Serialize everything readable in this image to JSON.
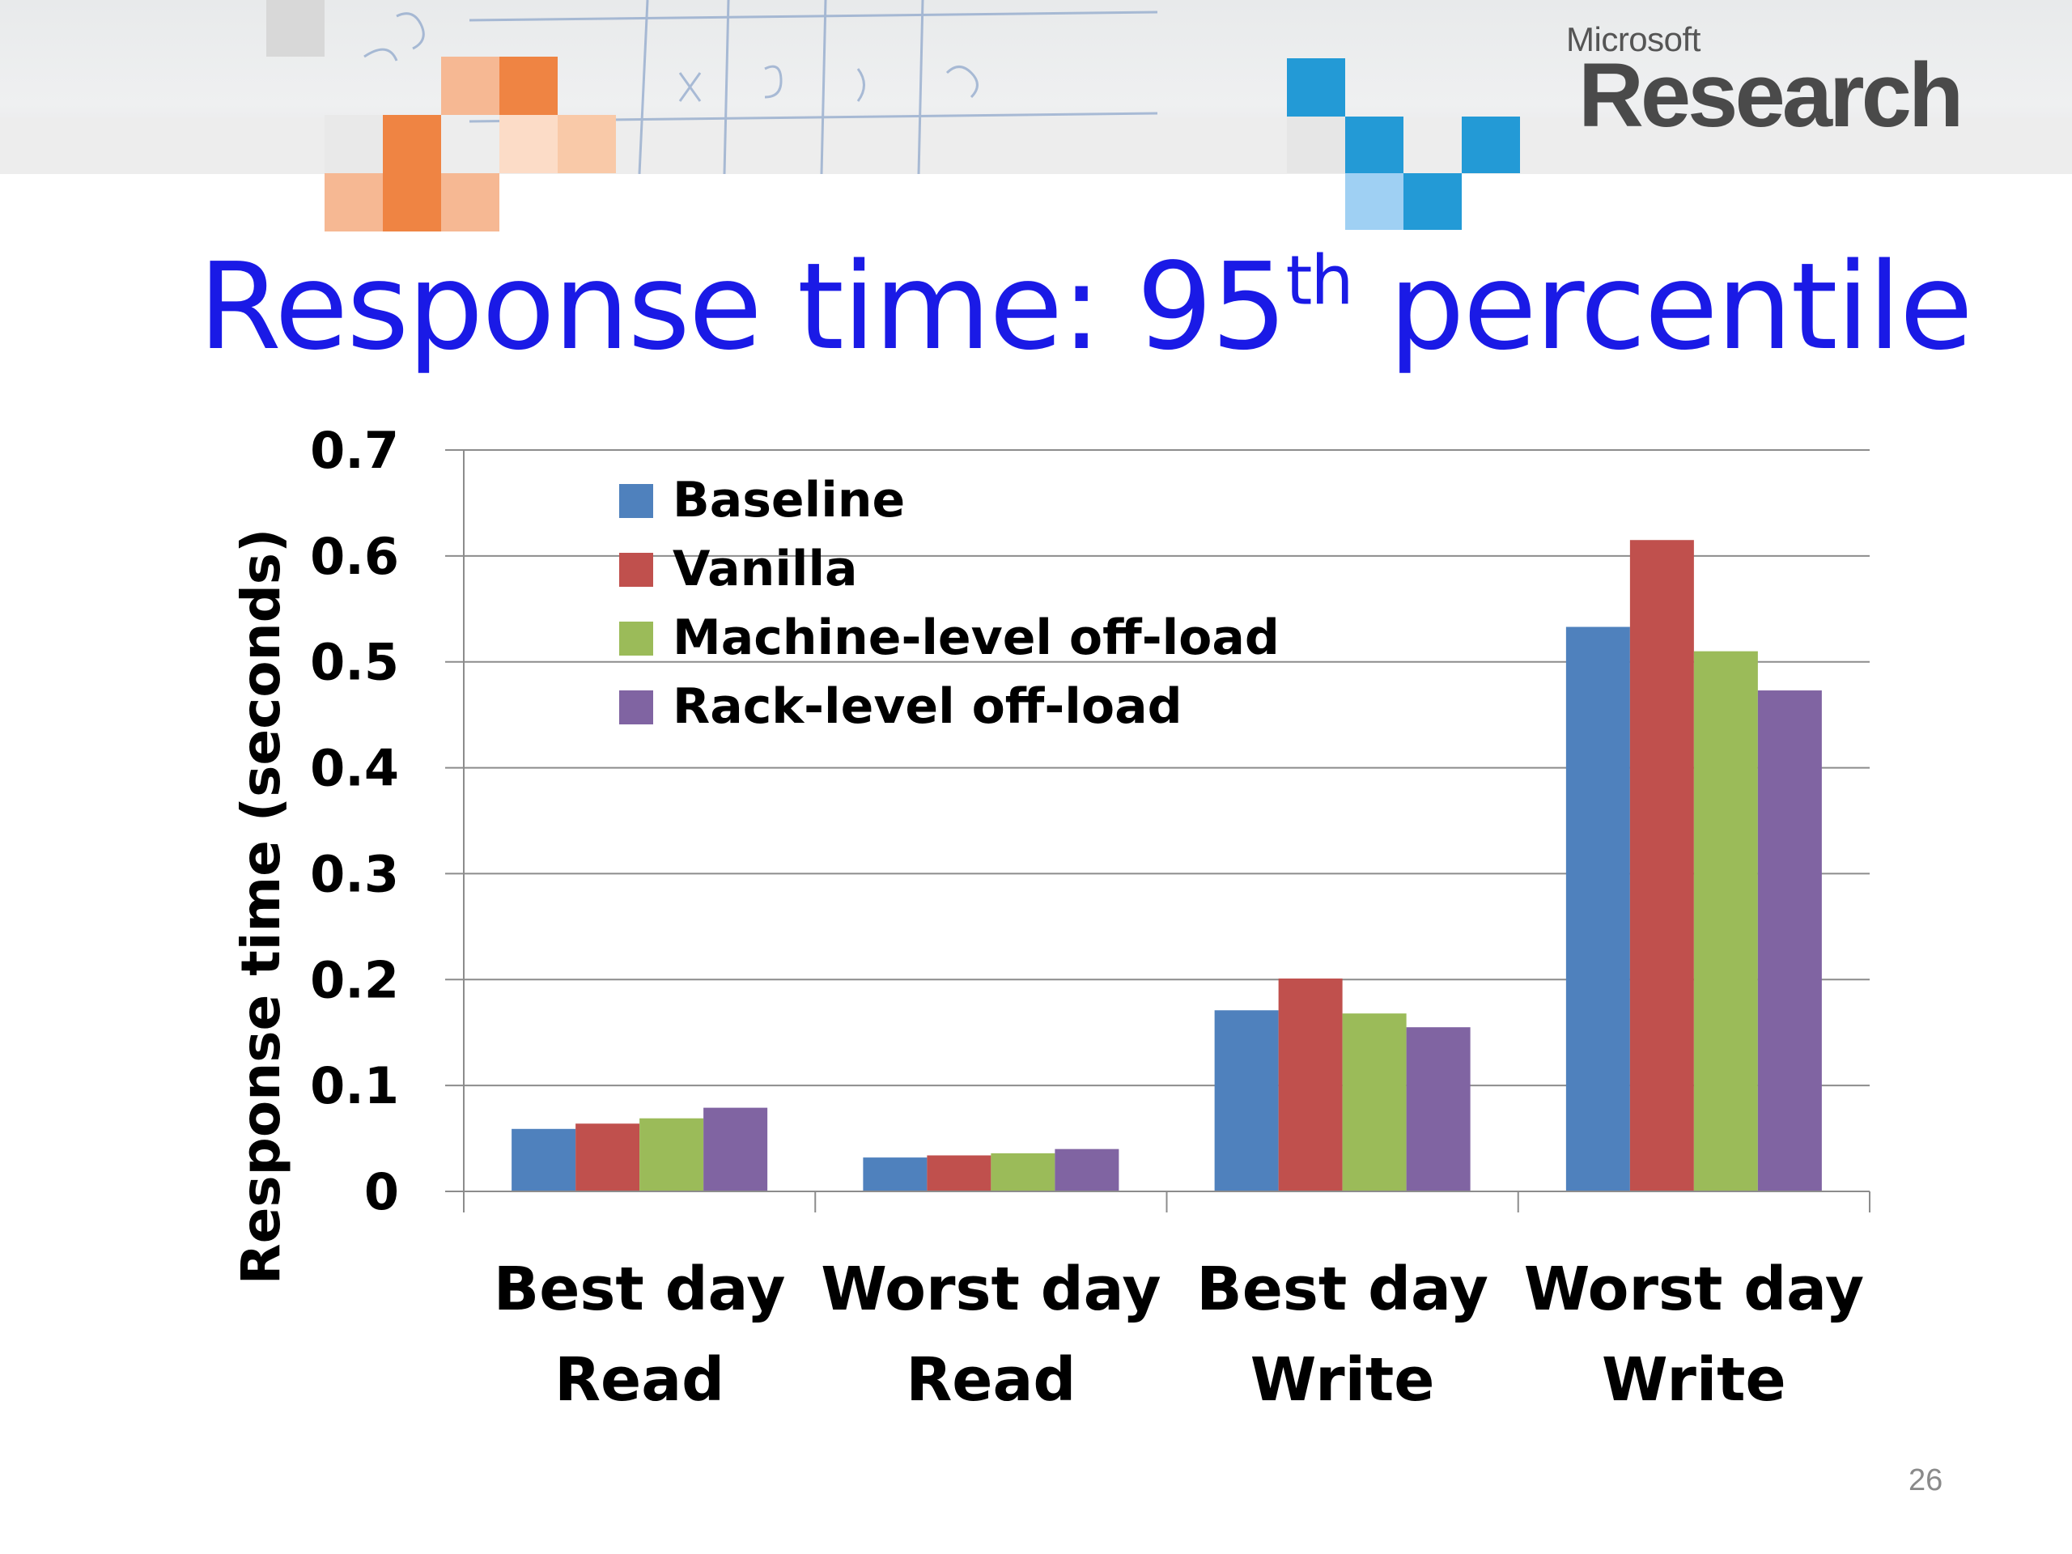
{
  "header": {
    "logo_small": "Microsoft",
    "logo_big": "Research"
  },
  "slide": {
    "title_main": "Response time: 95",
    "title_sup": "th",
    "title_tail": " percentile",
    "page_number": "26"
  },
  "colors": {
    "title": "#1a1ae6",
    "grid": "#8c8c8c"
  },
  "chart_data": {
    "type": "bar",
    "title": "",
    "xlabel": "",
    "ylabel": "Response time (seconds)",
    "ylim": [
      0,
      0.7
    ],
    "yticks": [
      "0",
      "0.1",
      "0.2",
      "0.3",
      "0.4",
      "0.5",
      "0.6",
      "0.7"
    ],
    "grid": true,
    "legend_position": "top-left",
    "categories": [
      [
        "Best day",
        "Read"
      ],
      [
        "Worst day",
        "Read"
      ],
      [
        "Best day",
        "Write"
      ],
      [
        "Worst day",
        "Write"
      ]
    ],
    "series": [
      {
        "name": "Baseline",
        "color": "#4f81bd",
        "values": [
          0.059,
          0.032,
          0.171,
          0.533
        ]
      },
      {
        "name": "Vanilla",
        "color": "#c0504d",
        "values": [
          0.064,
          0.034,
          0.201,
          0.615
        ]
      },
      {
        "name": "Machine-level off-load",
        "color": "#9bbb59",
        "values": [
          0.069,
          0.036,
          0.168,
          0.51
        ]
      },
      {
        "name": "Rack-level off-load",
        "color": "#8064a2",
        "values": [
          0.079,
          0.04,
          0.155,
          0.473
        ]
      }
    ]
  }
}
